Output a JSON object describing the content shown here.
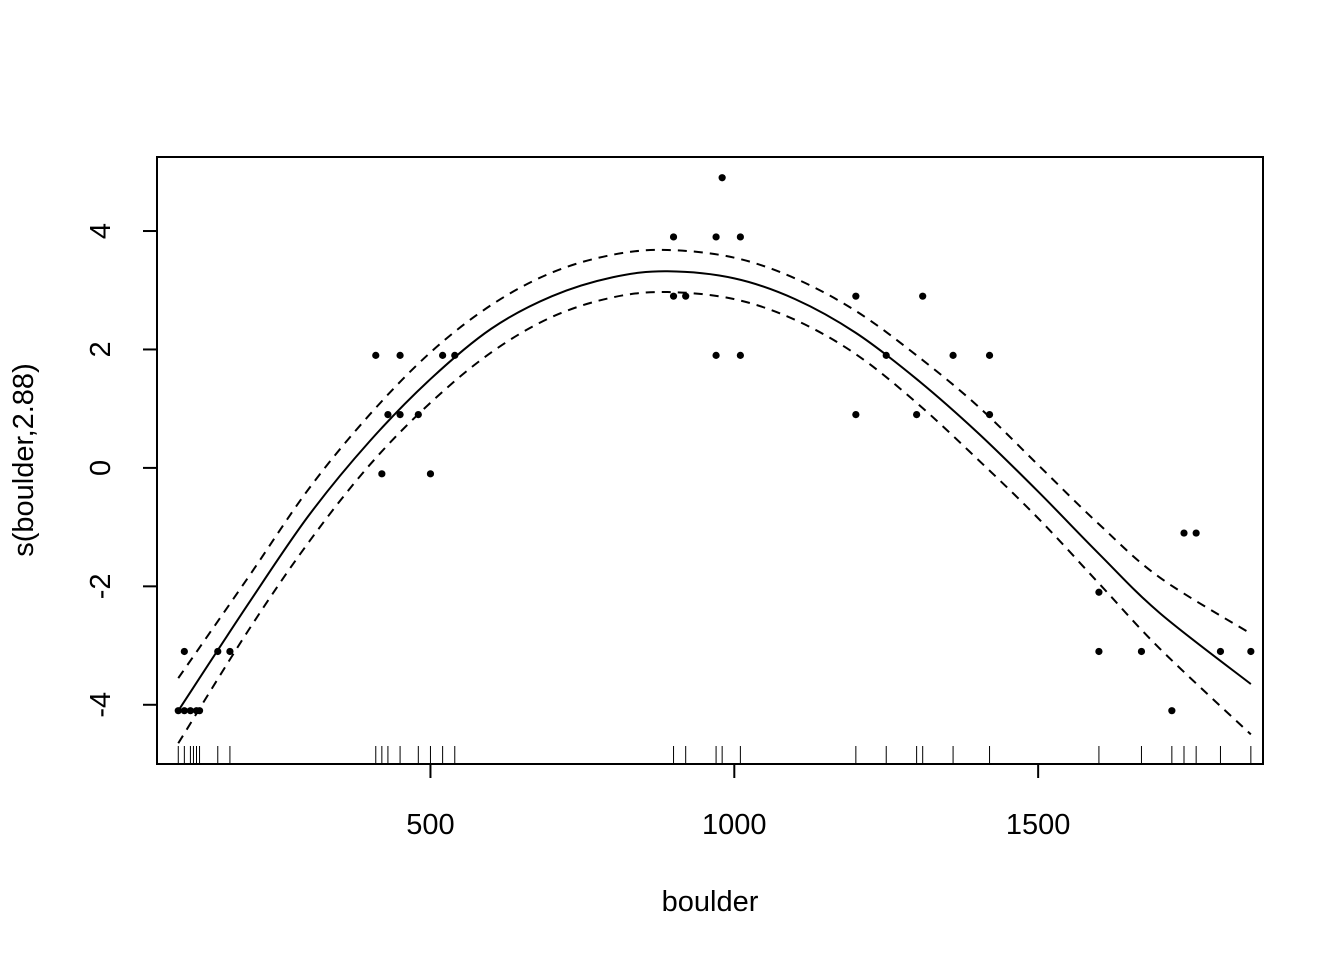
{
  "chart_data": {
    "type": "line",
    "title": "",
    "xlabel": "boulder",
    "ylabel": "s(boulder,2.88)",
    "xlim": [
      50,
      1870
    ],
    "ylim": [
      -5.0,
      5.25
    ],
    "x_ticks": [
      500,
      1000,
      1500
    ],
    "x_tick_labels": [
      "500",
      "1000",
      "1500"
    ],
    "y_ticks": [
      -4,
      -2,
      0,
      2,
      4
    ],
    "y_tick_labels": [
      "-4",
      "-2",
      "0",
      "2",
      "4"
    ],
    "smooth": {
      "name": "fit",
      "x": [
        85,
        200,
        300,
        400,
        500,
        600,
        700,
        800,
        890,
        1000,
        1100,
        1200,
        1300,
        1400,
        1500,
        1600,
        1700,
        1850
      ],
      "y": [
        -4.1,
        -2.3,
        -0.8,
        0.45,
        1.5,
        2.35,
        2.9,
        3.22,
        3.32,
        3.2,
        2.85,
        2.28,
        1.5,
        0.6,
        -0.4,
        -1.45,
        -2.45,
        -3.65
      ]
    },
    "upper_band": {
      "name": "upper confidence band",
      "x": [
        85,
        200,
        300,
        400,
        500,
        600,
        700,
        800,
        890,
        1000,
        1100,
        1200,
        1300,
        1400,
        1500,
        1600,
        1700,
        1850
      ],
      "y": [
        -3.55,
        -1.85,
        -0.35,
        0.9,
        1.95,
        2.75,
        3.3,
        3.6,
        3.68,
        3.55,
        3.2,
        2.65,
        1.9,
        1.05,
        0.05,
        -0.95,
        -1.85,
        -2.8
      ]
    },
    "lower_band": {
      "name": "lower confidence band",
      "x": [
        85,
        200,
        300,
        400,
        500,
        600,
        700,
        800,
        890,
        1000,
        1100,
        1200,
        1300,
        1400,
        1500,
        1600,
        1700,
        1850
      ],
      "y": [
        -4.65,
        -2.75,
        -1.25,
        0.05,
        1.1,
        1.95,
        2.55,
        2.88,
        2.97,
        2.85,
        2.5,
        1.92,
        1.1,
        0.15,
        -0.85,
        -1.95,
        -3.05,
        -4.5
      ]
    },
    "residual_points": {
      "name": "partial residuals",
      "x": [
        85,
        95,
        105,
        115,
        120,
        95,
        150,
        170,
        410,
        420,
        430,
        450,
        450,
        480,
        500,
        520,
        540,
        900,
        900,
        920,
        970,
        970,
        980,
        1010,
        1010,
        1200,
        1200,
        1250,
        1300,
        1310,
        1360,
        1420,
        1420,
        1600,
        1600,
        1670,
        1720,
        1740,
        1760,
        1800,
        1850
      ],
      "y": [
        -4.1,
        -4.1,
        -4.1,
        -4.1,
        -4.1,
        -3.1,
        -3.1,
        -3.1,
        1.9,
        -0.1,
        0.9,
        0.9,
        1.9,
        0.9,
        -0.1,
        1.9,
        1.9,
        3.9,
        2.9,
        2.9,
        3.9,
        1.9,
        4.9,
        3.9,
        1.9,
        2.9,
        0.9,
        1.9,
        0.9,
        2.9,
        1.9,
        1.9,
        0.9,
        -2.1,
        -3.1,
        -3.1,
        -4.1,
        -1.1,
        -1.1,
        -3.1,
        -3.1
      ]
    },
    "rug": [
      85,
      95,
      105,
      110,
      115,
      120,
      150,
      170,
      410,
      420,
      430,
      450,
      480,
      500,
      520,
      540,
      900,
      920,
      970,
      980,
      1010,
      1200,
      1250,
      1300,
      1310,
      1360,
      1420,
      1600,
      1670,
      1720,
      1740,
      1760,
      1800,
      1850
    ],
    "grid": false,
    "legend": "none"
  }
}
